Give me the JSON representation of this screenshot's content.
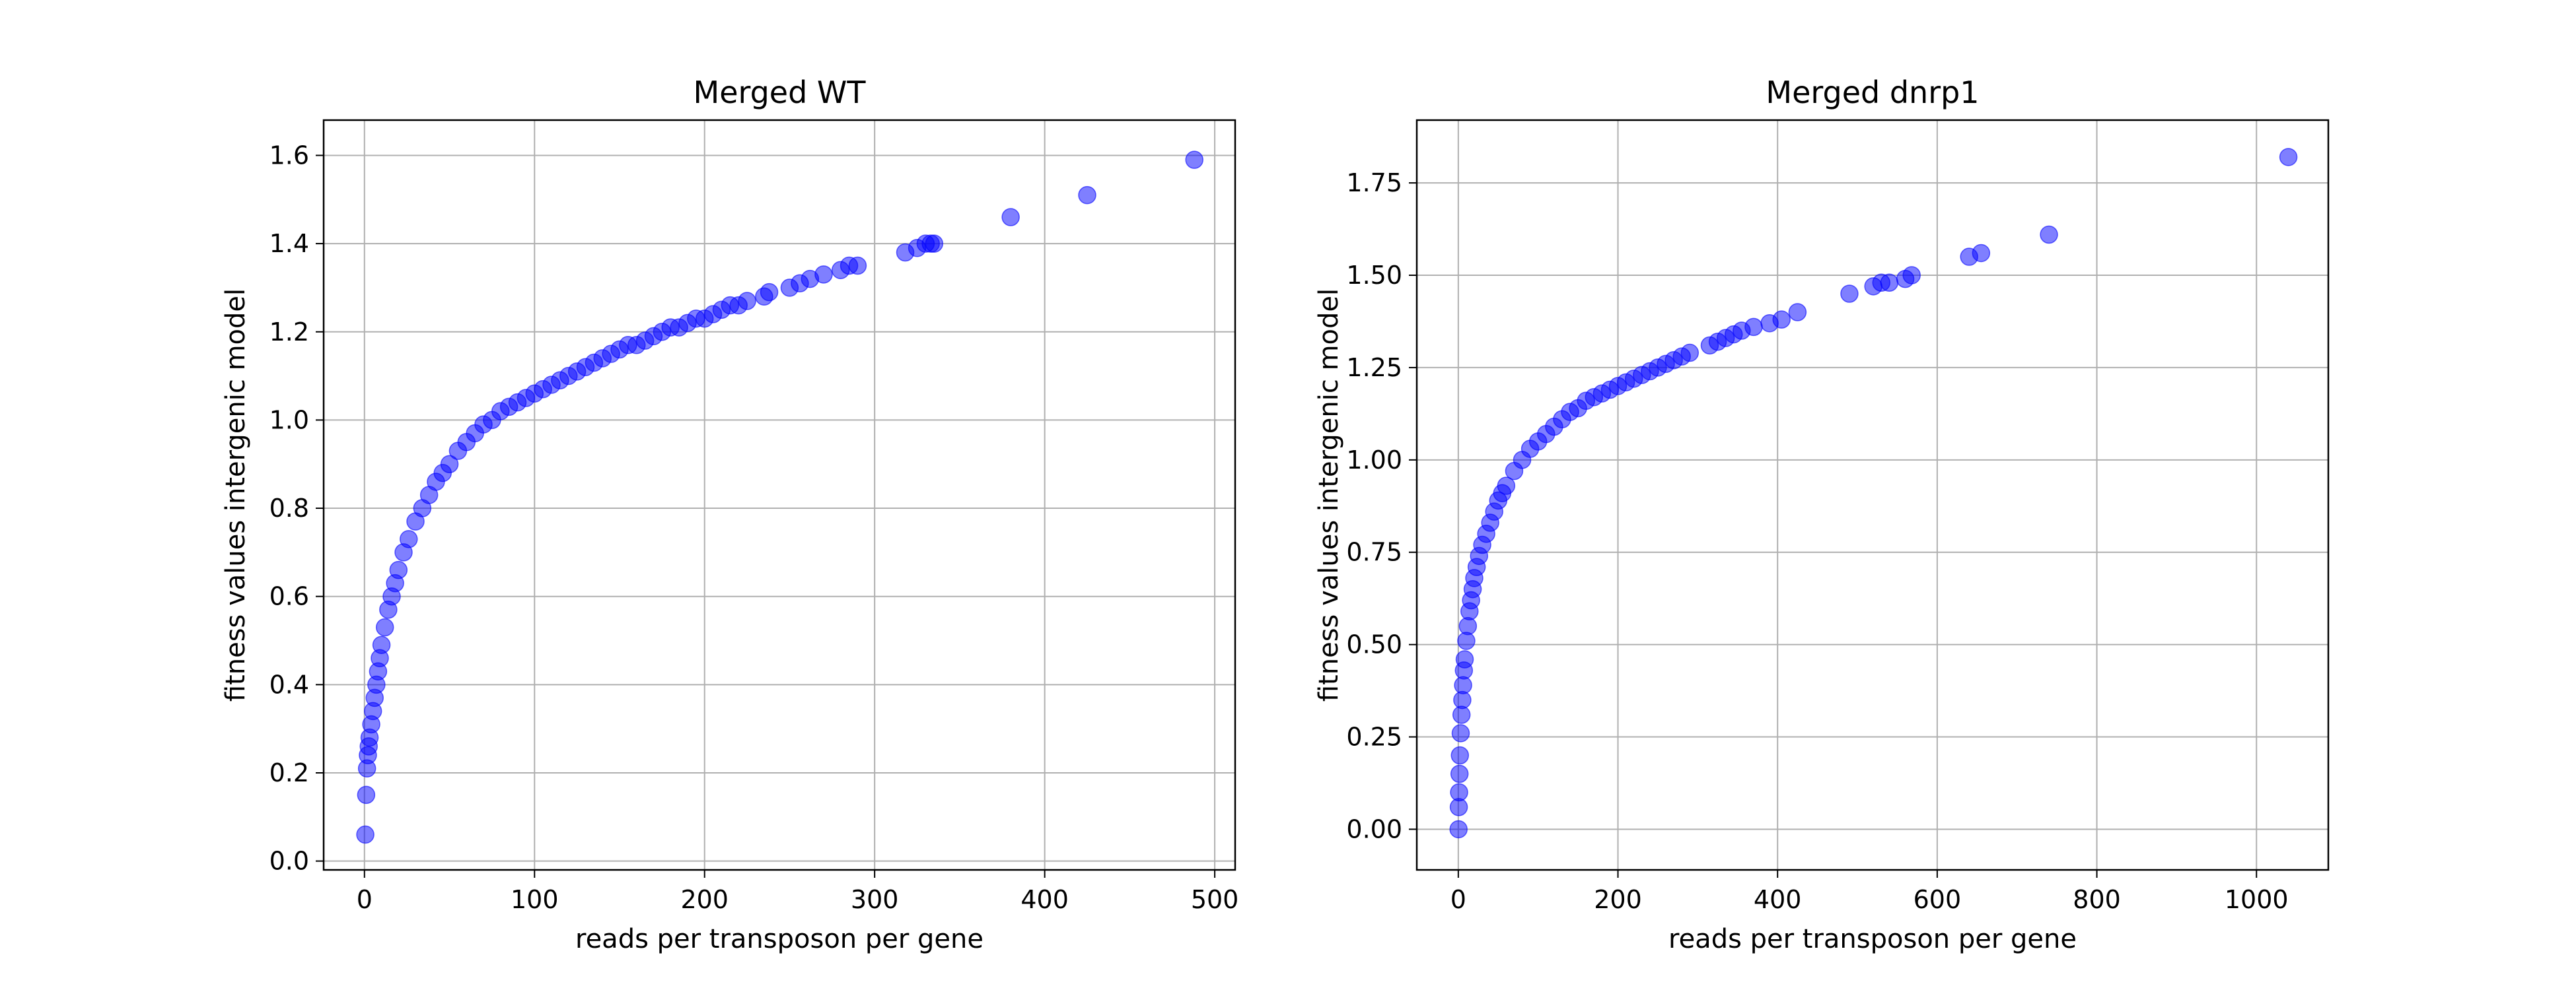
{
  "chart_data": [
    {
      "type": "scatter",
      "title": "Merged WT",
      "xlabel": "reads per transposon per gene",
      "ylabel": "fitness values intergenic model",
      "xlim": [
        -24,
        512
      ],
      "ylim": [
        -0.02,
        1.68
      ],
      "xticks": [
        0,
        100,
        200,
        300,
        400,
        500
      ],
      "xtick_labels": [
        "0",
        "100",
        "200",
        "300",
        "400",
        "500"
      ],
      "yticks": [
        0.0,
        0.2,
        0.4,
        0.6,
        0.8,
        1.0,
        1.2,
        1.4,
        1.6
      ],
      "ytick_labels": [
        "0.0",
        "0.2",
        "0.4",
        "0.6",
        "0.8",
        "1.0",
        "1.2",
        "1.4",
        "1.6"
      ],
      "grid": true,
      "marker_color": "#0000ff",
      "marker_alpha": 0.5,
      "series": [
        {
          "x": [
            0.5,
            1.0,
            1.5,
            2,
            2.5,
            3,
            4,
            5,
            6,
            7,
            8,
            9,
            10,
            12,
            14,
            16,
            18,
            20,
            23,
            26,
            30,
            34,
            38,
            42,
            46,
            50,
            55,
            60,
            65,
            70,
            75,
            80,
            85,
            90,
            95,
            100,
            105,
            110,
            115,
            120,
            125,
            130,
            135,
            140,
            145,
            150,
            155,
            160,
            165,
            170,
            175,
            180,
            185,
            190,
            195,
            200,
            205,
            210,
            215,
            220,
            225,
            235,
            238,
            250,
            256,
            262,
            270,
            280,
            285,
            290,
            318,
            325,
            330,
            333,
            335,
            380,
            425,
            488
          ],
          "y": [
            0.06,
            0.15,
            0.21,
            0.24,
            0.26,
            0.28,
            0.31,
            0.34,
            0.37,
            0.4,
            0.43,
            0.46,
            0.49,
            0.53,
            0.57,
            0.6,
            0.63,
            0.66,
            0.7,
            0.73,
            0.77,
            0.8,
            0.83,
            0.86,
            0.88,
            0.9,
            0.93,
            0.95,
            0.97,
            0.99,
            1.0,
            1.02,
            1.03,
            1.04,
            1.05,
            1.06,
            1.07,
            1.08,
            1.09,
            1.1,
            1.11,
            1.12,
            1.13,
            1.14,
            1.15,
            1.16,
            1.17,
            1.17,
            1.18,
            1.19,
            1.2,
            1.21,
            1.21,
            1.22,
            1.23,
            1.23,
            1.24,
            1.25,
            1.26,
            1.26,
            1.27,
            1.28,
            1.29,
            1.3,
            1.31,
            1.32,
            1.33,
            1.34,
            1.35,
            1.35,
            1.38,
            1.39,
            1.4,
            1.4,
            1.4,
            1.46,
            1.51,
            1.59
          ]
        }
      ]
    },
    {
      "type": "scatter",
      "title": "Merged dnrp1",
      "xlabel": "reads per transposon per gene",
      "ylabel": "fitness values intergenic model",
      "xlim": [
        -52,
        1090
      ],
      "ylim": [
        -0.11,
        1.92
      ],
      "xticks": [
        0,
        200,
        400,
        600,
        800,
        1000
      ],
      "xtick_labels": [
        "0",
        "200",
        "400",
        "600",
        "800",
        "1000"
      ],
      "yticks": [
        0.0,
        0.25,
        0.5,
        0.75,
        1.0,
        1.25,
        1.5,
        1.75
      ],
      "ytick_labels": [
        "0.00",
        "0.25",
        "0.50",
        "0.75",
        "1.00",
        "1.25",
        "1.50",
        "1.75"
      ],
      "grid": true,
      "marker_color": "#0000ff",
      "marker_alpha": 0.5,
      "series": [
        {
          "x": [
            0.3,
            0.6,
            1,
            1.5,
            2,
            3,
            4,
            5,
            6,
            7,
            8,
            10,
            12,
            14,
            16,
            18,
            20,
            23,
            26,
            30,
            35,
            40,
            45,
            50,
            55,
            60,
            70,
            80,
            90,
            100,
            110,
            120,
            130,
            140,
            150,
            160,
            170,
            180,
            190,
            200,
            210,
            220,
            230,
            240,
            250,
            260,
            270,
            280,
            290,
            315,
            325,
            335,
            345,
            355,
            370,
            390,
            405,
            425,
            490,
            520,
            530,
            540,
            560,
            568,
            640,
            655,
            740,
            1040
          ],
          "y": [
            0.0,
            0.06,
            0.1,
            0.15,
            0.2,
            0.26,
            0.31,
            0.35,
            0.39,
            0.43,
            0.46,
            0.51,
            0.55,
            0.59,
            0.62,
            0.65,
            0.68,
            0.71,
            0.74,
            0.77,
            0.8,
            0.83,
            0.86,
            0.89,
            0.91,
            0.93,
            0.97,
            1.0,
            1.03,
            1.05,
            1.07,
            1.09,
            1.11,
            1.13,
            1.14,
            1.16,
            1.17,
            1.18,
            1.19,
            1.2,
            1.21,
            1.22,
            1.23,
            1.24,
            1.25,
            1.26,
            1.27,
            1.28,
            1.29,
            1.31,
            1.32,
            1.33,
            1.34,
            1.35,
            1.36,
            1.37,
            1.38,
            1.4,
            1.45,
            1.47,
            1.48,
            1.48,
            1.49,
            1.5,
            1.55,
            1.56,
            1.61,
            1.82
          ]
        }
      ]
    }
  ]
}
